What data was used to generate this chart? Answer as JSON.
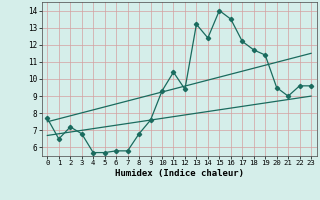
{
  "xlabel": "Humidex (Indice chaleur)",
  "xlim": [
    -0.5,
    23.5
  ],
  "ylim": [
    5.5,
    14.5
  ],
  "yticks": [
    6,
    7,
    8,
    9,
    10,
    11,
    12,
    13,
    14
  ],
  "xticks": [
    0,
    1,
    2,
    3,
    4,
    5,
    6,
    7,
    8,
    9,
    10,
    11,
    12,
    13,
    14,
    15,
    16,
    17,
    18,
    19,
    20,
    21,
    22,
    23
  ],
  "bg_color": "#d5eeea",
  "grid_color": "#c0c0c0",
  "line_color": "#1a6b5e",
  "line1_x": [
    0,
    1,
    2,
    3,
    4,
    5,
    6,
    7,
    8,
    9,
    10,
    11,
    12,
    13,
    14,
    15,
    16,
    17,
    18,
    19,
    20,
    21,
    22,
    23
  ],
  "line1_y": [
    7.7,
    6.5,
    7.2,
    6.8,
    5.7,
    5.7,
    5.8,
    5.8,
    6.8,
    7.6,
    9.3,
    10.4,
    9.4,
    13.2,
    12.4,
    14.0,
    13.5,
    12.2,
    11.7,
    11.4,
    9.5,
    9.0,
    9.6,
    9.6
  ],
  "line2_x": [
    0,
    23
  ],
  "line2_y": [
    7.5,
    11.5
  ],
  "line3_x": [
    0,
    23
  ],
  "line3_y": [
    6.7,
    9.0
  ]
}
